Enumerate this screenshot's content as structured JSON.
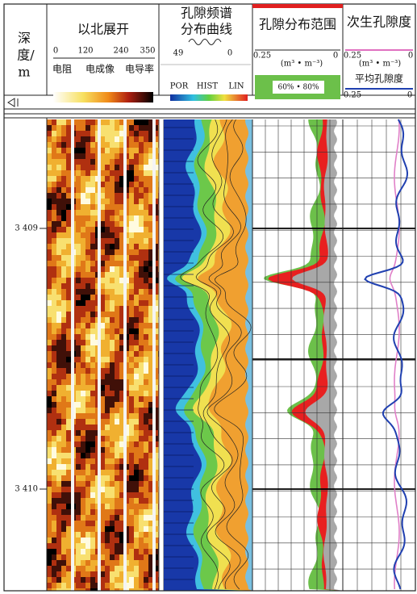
{
  "depth_header_lines": [
    "深",
    "度/",
    "m"
  ],
  "image_track": {
    "title": "以北展开",
    "scale": [
      "0",
      "120",
      "240",
      "350"
    ],
    "labels": [
      "电阻",
      "电成像",
      "电导率"
    ]
  },
  "spectrum_track": {
    "title_lines": [
      "孔隙频谱",
      "分布曲线"
    ],
    "scale": [
      "49",
      "0"
    ],
    "legend": [
      "POR",
      "HIST",
      "LIN"
    ]
  },
  "porosity_track": {
    "title": "孔隙分布范围",
    "scale": [
      "0.25",
      "0"
    ],
    "unit": "(m³ • m⁻³)",
    "legend_box": "60% • 80%"
  },
  "secondary_track": {
    "title": "次生孔隙度",
    "scale": [
      "0.25",
      "0"
    ],
    "unit": "(m³ • m⁻³)",
    "average_label": "平均孔隙度",
    "average_scale": [
      "0.25",
      "0"
    ]
  },
  "depth_labels": [
    "3 409",
    "3 410"
  ]
}
